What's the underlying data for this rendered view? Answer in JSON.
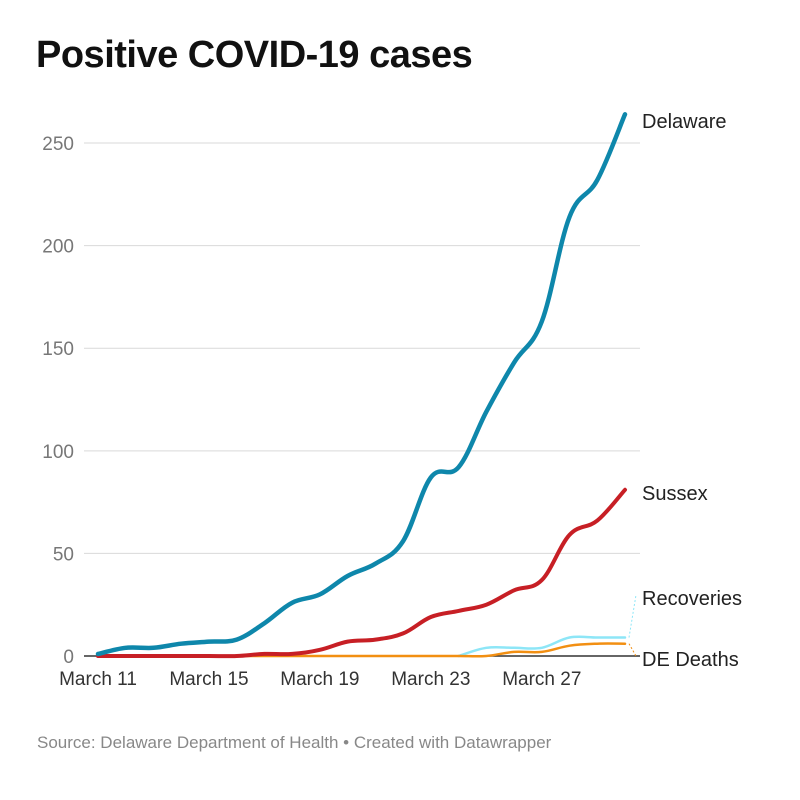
{
  "title": "Positive COVID-19 cases",
  "source": "Source: Delaware Department of Health • Created with Datawrapper",
  "chart_data": {
    "type": "line",
    "title": "Positive COVID-19 cases",
    "xlabel": "",
    "ylabel": "",
    "x_tick_labels": [
      "March 11",
      "March 15",
      "March 19",
      "March 23",
      "March 27"
    ],
    "x_tick_index": [
      0,
      4,
      8,
      12,
      16
    ],
    "x": [
      "March 11",
      "March 12",
      "March 13",
      "March 14",
      "March 15",
      "March 16",
      "March 17",
      "March 18",
      "March 19",
      "March 20",
      "March 21",
      "March 22",
      "March 23",
      "March 24",
      "March 25",
      "March 26",
      "March 27",
      "March 28",
      "March 29",
      "March 30"
    ],
    "y_ticks": [
      0,
      50,
      100,
      150,
      200,
      250
    ],
    "ylim": [
      0,
      270
    ],
    "grid": true,
    "series": [
      {
        "name": "Delaware",
        "color": "#0e87ab",
        "values": [
          1,
          4,
          4,
          6,
          7,
          8,
          16,
          26,
          30,
          39,
          45,
          56,
          87,
          92,
          119,
          143,
          163,
          214,
          232,
          264
        ]
      },
      {
        "name": "Sussex",
        "color": "#c71f25",
        "values": [
          0,
          0,
          0,
          0,
          0,
          0,
          1,
          1,
          3,
          7,
          8,
          11,
          19,
          22,
          25,
          32,
          37,
          59,
          66,
          81
        ]
      },
      {
        "name": "Recoveries",
        "color": "#8de6f7",
        "values": [
          null,
          null,
          null,
          null,
          null,
          null,
          null,
          null,
          null,
          null,
          null,
          null,
          null,
          0,
          4,
          4,
          4,
          9,
          9,
          9
        ]
      },
      {
        "name": "DE Deaths",
        "color": "#f28f12",
        "values": [
          0,
          0,
          0,
          0,
          0,
          0,
          0,
          0,
          0,
          0,
          0,
          0,
          0,
          0,
          0,
          2,
          2,
          5,
          6,
          6
        ]
      }
    ]
  }
}
